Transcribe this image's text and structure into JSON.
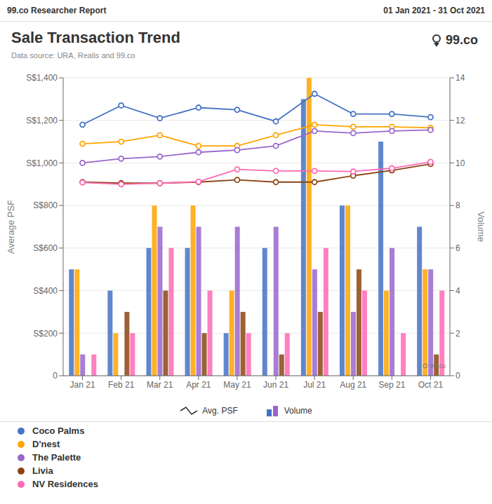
{
  "chart_data": {
    "type": "bar",
    "title": "Sale Transaction Trend",
    "subtitle": "Data source: URA, Realis and 99.co",
    "annotations": [
      "99.co Researcher Report",
      "01 Jan 2021 - 31 Oct 2021",
      "99.co",
      "99.co",
      "Avg. PSF",
      "Volume"
    ],
    "ylabel": "Average PSF",
    "y2label": "Volume",
    "categories": [
      "Jan 21",
      "Feb 21",
      "Mar 21",
      "Apr 21",
      "May 21",
      "Jun 21",
      "Jul 21",
      "Aug 21",
      "Sep 21",
      "Oct 21"
    ],
    "ylim": [
      0,
      1400
    ],
    "yticks": [
      0,
      {
        "value": 200,
        "label": "S$200"
      },
      {
        "value": 400,
        "label": "S$400"
      },
      {
        "value": 600,
        "label": "S$600"
      },
      {
        "value": 800,
        "label": "S$800"
      },
      {
        "value": 1000,
        "label": "S$1,000"
      },
      {
        "value": 1200,
        "label": "S$1,200"
      },
      {
        "value": 1400,
        "label": "S$1,400"
      }
    ],
    "y2lim": [
      0,
      14
    ],
    "y2ticks": [
      0,
      2,
      4,
      6,
      8,
      10,
      12,
      14
    ],
    "grid": true,
    "legend": "bottom",
    "series": [
      {
        "name": "Coco Palms",
        "type": "bar",
        "axis": "y2",
        "color": "#4472C4",
        "values": [
          5,
          4,
          6,
          6,
          2,
          6,
          13,
          8,
          11,
          7
        ]
      },
      {
        "name": "D'nest",
        "type": "bar",
        "axis": "y2",
        "color": "#FFA500",
        "values": [
          5,
          2,
          8,
          8,
          4,
          0,
          14,
          8,
          4,
          5
        ]
      },
      {
        "name": "The Palette",
        "type": "bar",
        "axis": "y2",
        "color": "#9966CC",
        "values": [
          1,
          0,
          7,
          7,
          7,
          7,
          5,
          3,
          6,
          5
        ]
      },
      {
        "name": "Livia",
        "type": "bar",
        "axis": "y2",
        "color": "#8B4513",
        "values": [
          0,
          3,
          4,
          2,
          3,
          1,
          3,
          5,
          0,
          1
        ]
      },
      {
        "name": "NV Residences",
        "type": "bar",
        "axis": "y2",
        "color": "#FF69B4",
        "values": [
          1,
          2,
          6,
          4,
          2,
          2,
          6,
          4,
          2,
          4
        ]
      },
      {
        "name": "Coco Palms",
        "type": "line",
        "marker": "circle",
        "color": "#4472C4",
        "values": [
          1180,
          1270,
          1210,
          1260,
          1250,
          1195,
          1325,
          1230,
          1230,
          1215
        ]
      },
      {
        "name": "D'nest",
        "type": "line",
        "marker": "circle",
        "color": "#FFA500",
        "values": [
          1090,
          1100,
          1130,
          1080,
          1080,
          1130,
          1180,
          1170,
          1170,
          1165
        ]
      },
      {
        "name": "The Palette",
        "type": "line",
        "marker": "circle",
        "color": "#9966CC",
        "values": [
          1000,
          1020,
          1030,
          1050,
          1060,
          1080,
          1150,
          1140,
          1150,
          1155
        ]
      },
      {
        "name": "Livia",
        "type": "line",
        "marker": "circle",
        "color": "#8B4513",
        "values": [
          910,
          905,
          905,
          910,
          920,
          910,
          910,
          940,
          965,
          995
        ]
      },
      {
        "name": "NV Residences",
        "type": "line",
        "marker": "circle",
        "color": "#FF69B4",
        "values": [
          908,
          900,
          905,
          912,
          970,
          962,
          962,
          960,
          975,
          1005
        ]
      }
    ]
  }
}
